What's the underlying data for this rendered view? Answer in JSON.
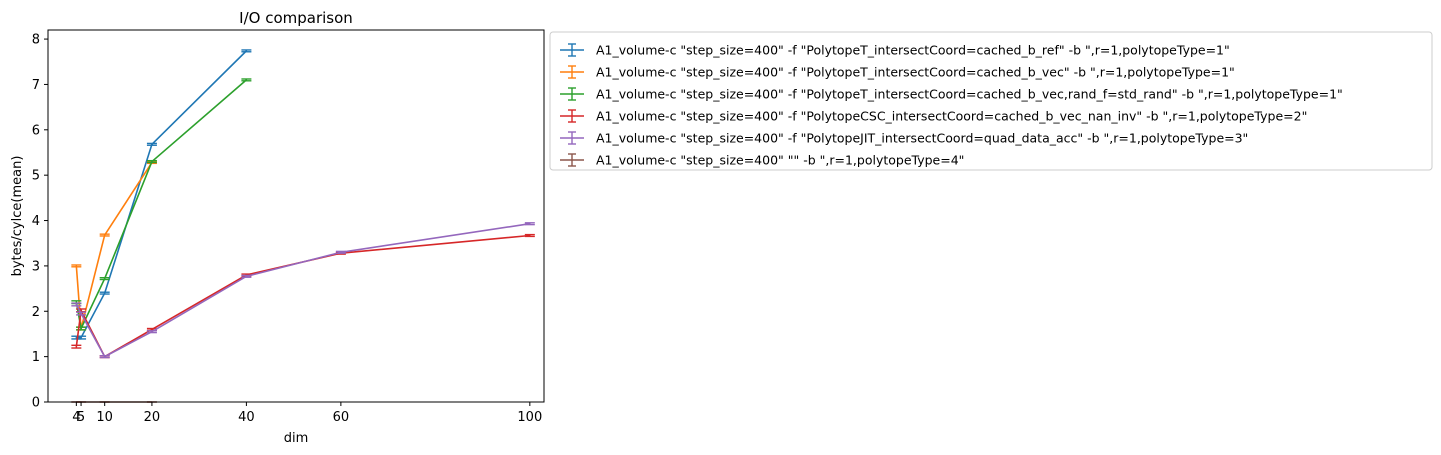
{
  "chart_data": {
    "type": "line",
    "title": "I/O comparison",
    "xlabel": "dim",
    "ylabel": "bytes/cylce(mean)",
    "xlim": [
      -2,
      103
    ],
    "ylim": [
      0,
      8.2
    ],
    "xticks": [
      4,
      5,
      10,
      20,
      40,
      60,
      100
    ],
    "yticks": [
      0,
      1,
      2,
      3,
      4,
      5,
      6,
      7,
      8
    ],
    "grid": false,
    "legend_position": "outside-right-top",
    "series": [
      {
        "name": "A1_volume-c \"step_size=400\" -f \"PolytopeT_intersectCoord=cached_b_ref\" -b \",r=1,polytopeType=1\"",
        "color": "#1f77b4",
        "points": [
          {
            "x": 4,
            "y": 1.42,
            "err": 0.03
          },
          {
            "x": 5,
            "y": 1.42,
            "err": 0.03
          },
          {
            "x": 10,
            "y": 2.4,
            "err": 0.02
          },
          {
            "x": 20,
            "y": 5.68,
            "err": 0.02
          },
          {
            "x": 40,
            "y": 7.74,
            "err": 0.02
          }
        ]
      },
      {
        "name": "A1_volume-c \"step_size=400\" -f \"PolytopeT_intersectCoord=cached_b_vec\" -b \",r=1,polytopeType=1\"",
        "color": "#ff7f0e",
        "points": [
          {
            "x": 4,
            "y": 3.0,
            "err": 0.02
          },
          {
            "x": 5,
            "y": 1.62,
            "err": 0.03
          },
          {
            "x": 10,
            "y": 3.68,
            "err": 0.02
          },
          {
            "x": 20,
            "y": 5.28,
            "err": 0.02
          }
        ]
      },
      {
        "name": "A1_volume-c \"step_size=400\" -f \"PolytopeT_intersectCoord=cached_b_vec,rand_f=std_rand\" -b \",r=1,polytopeType=1\"",
        "color": "#2ca02c",
        "points": [
          {
            "x": 4,
            "y": 2.2,
            "err": 0.03
          },
          {
            "x": 5,
            "y": 1.62,
            "err": 0.03
          },
          {
            "x": 10,
            "y": 2.72,
            "err": 0.02
          },
          {
            "x": 20,
            "y": 5.3,
            "err": 0.02
          },
          {
            "x": 40,
            "y": 7.1,
            "err": 0.02
          }
        ]
      },
      {
        "name": "A1_volume-c \"step_size=400\" -f \"PolytopeCSC_intersectCoord=cached_b_vec_nan_inv\" -b \",r=1,polytopeType=2\"",
        "color": "#d62728",
        "points": [
          {
            "x": 4,
            "y": 1.22,
            "err": 0.03
          },
          {
            "x": 5,
            "y": 2.02,
            "err": 0.03
          },
          {
            "x": 10,
            "y": 1.0,
            "err": 0.02
          },
          {
            "x": 20,
            "y": 1.6,
            "err": 0.02
          },
          {
            "x": 40,
            "y": 2.8,
            "err": 0.02
          },
          {
            "x": 60,
            "y": 3.28,
            "err": 0.02
          },
          {
            "x": 100,
            "y": 3.67,
            "err": 0.02
          }
        ]
      },
      {
        "name": "A1_volume-c \"step_size=400\" -f \"PolytopeJIT_intersectCoord=quad_data_acc\" -b \",r=1,polytopeType=3\"",
        "color": "#9467bd",
        "points": [
          {
            "x": 4,
            "y": 2.15,
            "err": 0.03
          },
          {
            "x": 5,
            "y": 1.95,
            "err": 0.03
          },
          {
            "x": 10,
            "y": 1.0,
            "err": 0.02
          },
          {
            "x": 20,
            "y": 1.55,
            "err": 0.02
          },
          {
            "x": 40,
            "y": 2.77,
            "err": 0.02
          },
          {
            "x": 60,
            "y": 3.3,
            "err": 0.02
          },
          {
            "x": 100,
            "y": 3.93,
            "err": 0.02
          }
        ]
      },
      {
        "name": "A1_volume-c \"step_size=400\"  \"\" -b \",r=1,polytopeType=4\"",
        "color": "#8c564b",
        "points": [
          {
            "x": 4,
            "y": 0.0,
            "err": 0.0
          },
          {
            "x": 5,
            "y": 0.0,
            "err": 0.0
          },
          {
            "x": 10,
            "y": 0.0,
            "err": 0.0
          },
          {
            "x": 20,
            "y": 0.0,
            "err": 0.0
          }
        ]
      }
    ]
  }
}
